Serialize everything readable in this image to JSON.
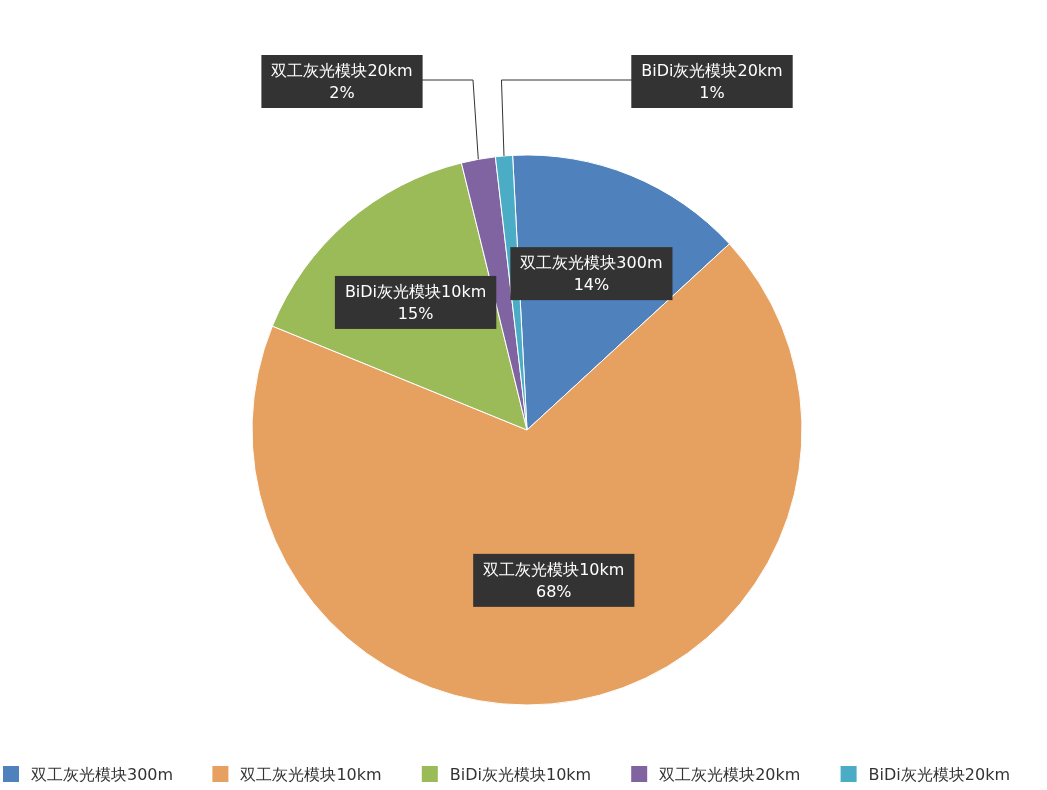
{
  "chart_data": {
    "type": "pie",
    "categories": [
      "双工灰光模块300m",
      "双工灰光模块10km",
      "BiDi灰光模块10km",
      "双工灰光模块20km",
      "BiDi灰光模块20km"
    ],
    "values": [
      14,
      68,
      15,
      2,
      1
    ],
    "value_labels": [
      "14%",
      "68%",
      "15%",
      "2%",
      "1%"
    ],
    "colors": [
      "#4f81bd",
      "#e6a060",
      "#9bbb59",
      "#8064a2",
      "#4bacc6"
    ],
    "legend": "bottom"
  }
}
